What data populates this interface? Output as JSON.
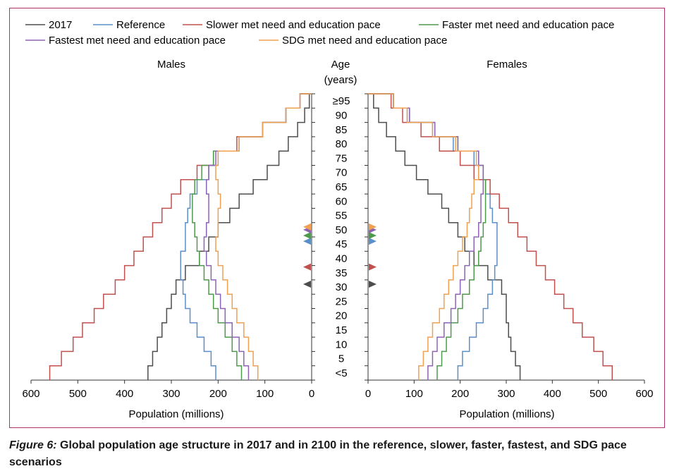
{
  "caption": {
    "figure_label": "Figure 6:",
    "text": "Global population age structure in 2017 and in 2100 in the reference, slower, faster, fastest, and SDG pace scenarios"
  },
  "chart_data": {
    "type": "line",
    "chart_subtype": "population pyramid (step lines)",
    "legend_position": "top-left",
    "panels": {
      "left": "Males",
      "right": "Females"
    },
    "age_axis_label": "Age\n(years)",
    "xlabel": "Population (millions)",
    "xlim": [
      0,
      600
    ],
    "x_ticks": [
      600,
      500,
      400,
      300,
      200,
      100,
      0
    ],
    "x_ticks_right": [
      0,
      100,
      200,
      300,
      400,
      500,
      600
    ],
    "age_groups": [
      "<5",
      "5",
      "10",
      "15",
      "20",
      "25",
      "30",
      "35",
      "40",
      "45",
      "50",
      "55",
      "60",
      "65",
      "70",
      "75",
      "80",
      "85",
      "90",
      "≥95"
    ],
    "age_tick_labels": [
      "<5",
      "5",
      "10",
      "15",
      "20",
      "25",
      "30",
      "35",
      "40",
      "45",
      "50",
      "55",
      "60",
      "65",
      "70",
      "75",
      "80",
      "85",
      "90",
      "≥95"
    ],
    "series": [
      {
        "name": "2017",
        "color": "#4d4d4d",
        "males": [
          350,
          340,
          330,
          320,
          310,
          300,
          290,
          270,
          240,
          220,
          200,
          175,
          155,
          125,
          95,
          70,
          50,
          30,
          15,
          5
        ],
        "females": [
          330,
          320,
          310,
          305,
          300,
          300,
          290,
          260,
          230,
          210,
          195,
          175,
          160,
          130,
          105,
          80,
          60,
          40,
          23,
          12
        ],
        "median_age": 31
      },
      {
        "name": "Reference",
        "color": "#5b8fc9",
        "males": [
          205,
          215,
          230,
          245,
          260,
          270,
          275,
          280,
          280,
          270,
          270,
          265,
          260,
          245,
          220,
          200,
          155,
          105,
          55,
          25
        ],
        "females": [
          195,
          205,
          220,
          235,
          250,
          260,
          270,
          275,
          280,
          280,
          280,
          270,
          265,
          255,
          240,
          230,
          185,
          140,
          85,
          55
        ],
        "median_age": 46
      },
      {
        "name": "Slower met need and education pace",
        "color": "#c0504d",
        "males": [
          560,
          535,
          510,
          490,
          465,
          445,
          420,
          400,
          380,
          360,
          340,
          320,
          300,
          280,
          245,
          210,
          160,
          105,
          55,
          25
        ],
        "females": [
          530,
          510,
          490,
          465,
          445,
          425,
          405,
          385,
          365,
          345,
          325,
          305,
          285,
          265,
          230,
          200,
          155,
          115,
          75,
          50
        ],
        "median_age": 37
      },
      {
        "name": "Faster met need and education pace",
        "color": "#4e9a4c",
        "males": [
          150,
          160,
          170,
          185,
          200,
          210,
          220,
          230,
          240,
          245,
          250,
          255,
          255,
          250,
          235,
          210,
          155,
          105,
          55,
          25
        ],
        "females": [
          150,
          160,
          170,
          180,
          195,
          205,
          220,
          230,
          240,
          245,
          250,
          255,
          255,
          255,
          250,
          240,
          195,
          145,
          90,
          55
        ],
        "median_age": 48
      },
      {
        "name": "Fastest met need and education pace",
        "color": "#8e63b5",
        "males": [
          135,
          145,
          155,
          170,
          185,
          195,
          205,
          215,
          225,
          230,
          225,
          220,
          220,
          225,
          220,
          205,
          155,
          105,
          55,
          25
        ],
        "females": [
          130,
          140,
          150,
          165,
          180,
          190,
          200,
          210,
          220,
          230,
          240,
          245,
          245,
          250,
          250,
          240,
          195,
          145,
          90,
          55
        ],
        "median_age": 50
      },
      {
        "name": "SDG met need and education pace",
        "color": "#f0a050",
        "males": [
          115,
          125,
          135,
          145,
          160,
          170,
          180,
          190,
          200,
          205,
          200,
          200,
          195,
          200,
          205,
          200,
          155,
          105,
          55,
          25
        ],
        "females": [
          110,
          120,
          130,
          140,
          155,
          165,
          175,
          185,
          195,
          205,
          215,
          220,
          225,
          230,
          240,
          235,
          190,
          140,
          85,
          55
        ],
        "median_age": 51
      }
    ]
  }
}
